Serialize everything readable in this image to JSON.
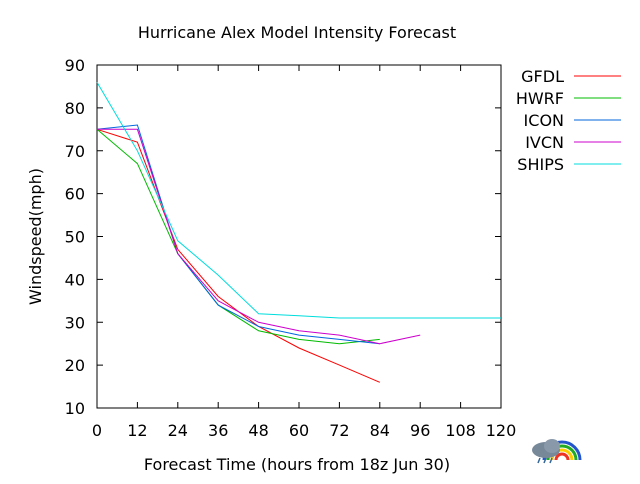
{
  "chart_data": {
    "type": "line",
    "title": "Hurricane Alex Model Intensity Forecast",
    "xlabel": "Forecast Time (hours from 18z  Jun 30)",
    "ylabel": "Windspeed(mph)",
    "xlim": [
      0,
      120
    ],
    "ylim": [
      10,
      90
    ],
    "xticks": [
      "0",
      "12",
      "24",
      "36",
      "48",
      "60",
      "72",
      "84",
      "96",
      "108",
      "120"
    ],
    "yticks": [
      "10",
      "20",
      "30",
      "40",
      "50",
      "60",
      "70",
      "80",
      "90"
    ],
    "grid": false,
    "legend_position": "right",
    "series": [
      {
        "name": "GFDL",
        "color": "#ff0000",
        "x": [
          0,
          12,
          24,
          36,
          48,
          60,
          72,
          84
        ],
        "y": [
          75,
          72,
          47,
          36,
          29,
          24,
          20,
          16
        ]
      },
      {
        "name": "HWRF",
        "color": "#00bb00",
        "x": [
          0,
          12,
          24,
          36,
          48,
          60,
          72,
          84
        ],
        "y": [
          75,
          67,
          46,
          34,
          28,
          26,
          25,
          26
        ]
      },
      {
        "name": "ICON",
        "color": "#0066dd",
        "x": [
          0,
          12,
          24,
          36,
          48,
          60,
          72,
          84
        ],
        "y": [
          75,
          76,
          46,
          34,
          29,
          27,
          26,
          25
        ]
      },
      {
        "name": "IVCN",
        "color": "#cc00cc",
        "x": [
          0,
          12,
          24,
          36,
          48,
          60,
          72,
          84,
          96
        ],
        "y": [
          75,
          75,
          46,
          35,
          30,
          28,
          27,
          25,
          27
        ]
      },
      {
        "name": "SHIPS",
        "color": "#00dddd",
        "x": [
          0,
          12,
          24,
          36,
          48,
          60,
          72,
          84,
          96,
          108,
          120
        ],
        "y": [
          86,
          70,
          49,
          41,
          32,
          31.5,
          31,
          31,
          31,
          31,
          31
        ]
      }
    ]
  }
}
